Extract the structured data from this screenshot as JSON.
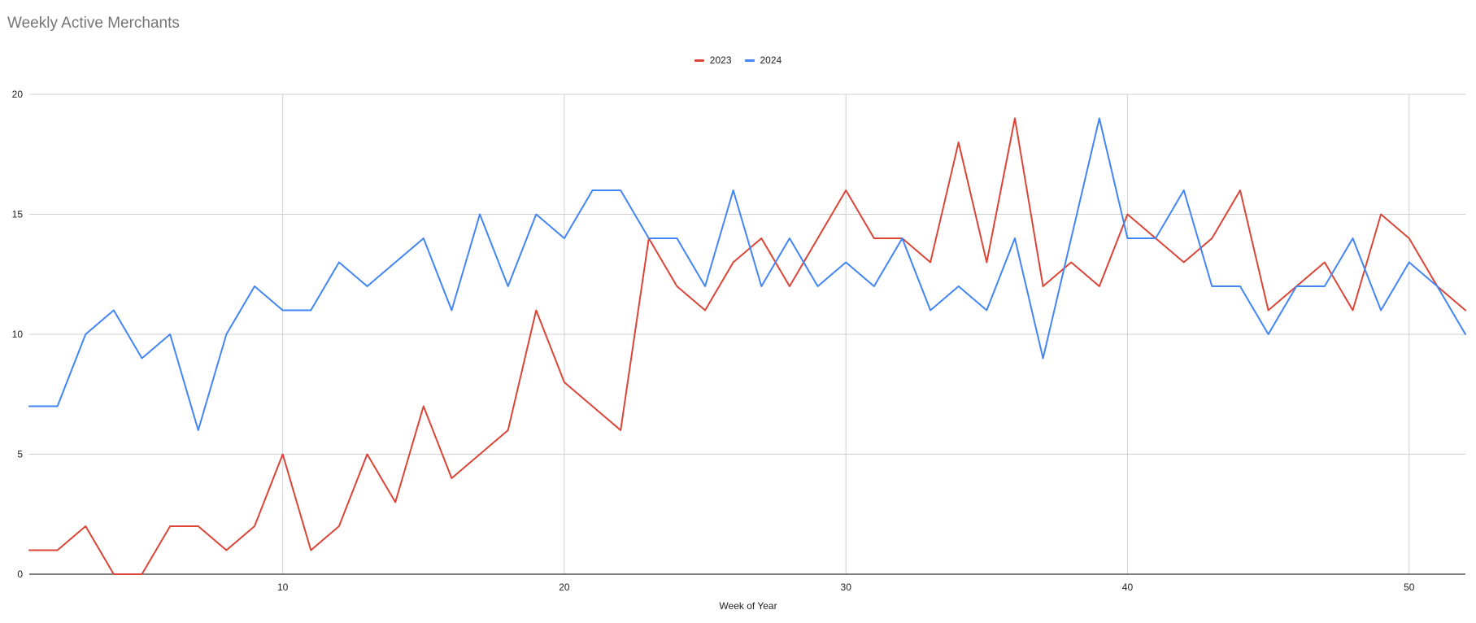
{
  "chart_data": {
    "type": "line",
    "title": "Weekly Active Merchants",
    "xlabel": "Week of Year",
    "ylabel": "",
    "xlim": [
      1,
      52
    ],
    "ylim": [
      0,
      20
    ],
    "x_ticks": [
      10,
      20,
      30,
      40,
      50
    ],
    "y_ticks": [
      0,
      5,
      10,
      15,
      20
    ],
    "grid": true,
    "legend_position": "top",
    "x": [
      1,
      2,
      3,
      4,
      5,
      6,
      7,
      8,
      9,
      10,
      11,
      12,
      13,
      14,
      15,
      16,
      17,
      18,
      19,
      20,
      21,
      22,
      23,
      24,
      25,
      26,
      27,
      28,
      29,
      30,
      31,
      32,
      33,
      34,
      35,
      36,
      37,
      38,
      39,
      40,
      41,
      42,
      43,
      44,
      45,
      46,
      47,
      48,
      49,
      50,
      51,
      52
    ],
    "series": [
      {
        "name": "2023",
        "color": "#db4437",
        "values": [
          1,
          1,
          2,
          0,
          0,
          2,
          2,
          1,
          2,
          5,
          1,
          2,
          5,
          3,
          7,
          4,
          5,
          6,
          11,
          8,
          7,
          6,
          14,
          12,
          11,
          13,
          14,
          12,
          14,
          16,
          14,
          14,
          13,
          18,
          13,
          19,
          12,
          13,
          12,
          15,
          14,
          13,
          14,
          16,
          11,
          12,
          13,
          11,
          15,
          14,
          12,
          11
        ]
      },
      {
        "name": "2024",
        "color": "#4285f4",
        "values": [
          7,
          7,
          10,
          11,
          9,
          10,
          6,
          10,
          12,
          11,
          11,
          13,
          12,
          13,
          14,
          11,
          15,
          12,
          15,
          14,
          16,
          16,
          14,
          14,
          12,
          16,
          12,
          14,
          12,
          13,
          12,
          14,
          11,
          12,
          11,
          14,
          9,
          14,
          19,
          14,
          14,
          16,
          12,
          12,
          10,
          12,
          12,
          14,
          11,
          13,
          12,
          10
        ]
      }
    ]
  }
}
